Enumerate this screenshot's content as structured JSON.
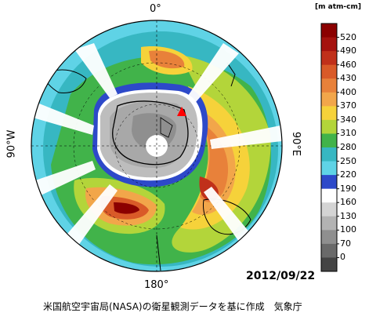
{
  "map": {
    "longitude_labels": {
      "top": "0°",
      "bottom": "180°",
      "left": "90°W",
      "right": "90°E"
    },
    "date": "2012/09/22",
    "credit": "米国航空宇宙局(NASA)の衛星観測データを基に作成　気象庁",
    "marker": "red-triangle"
  },
  "legend": {
    "unit": "[m atm-cm]",
    "ticks": [
      "520",
      "490",
      "460",
      "430",
      "400",
      "370",
      "340",
      "310",
      "280",
      "250",
      "220",
      "190",
      "160",
      "130",
      "100",
      "70",
      "0"
    ],
    "colors": [
      "#8b0000",
      "#a5120e",
      "#c0301a",
      "#d95a28",
      "#e8813a",
      "#f2a64a",
      "#f6d23a",
      "#b3d53a",
      "#41b34a",
      "#37b7c2",
      "#5fd3e6",
      "#2d49c9",
      "#ffffff",
      "#d4d4d4",
      "#b3b3b3",
      "#8f8f8f",
      "#6a6a6a",
      "#444444"
    ]
  },
  "colors": {
    "lowOzone": "#bdbdbd",
    "hole_core": "#6a6a6a",
    "ring": "#2d49c9",
    "high": "#e8813a",
    "mid": "#41b34a"
  }
}
